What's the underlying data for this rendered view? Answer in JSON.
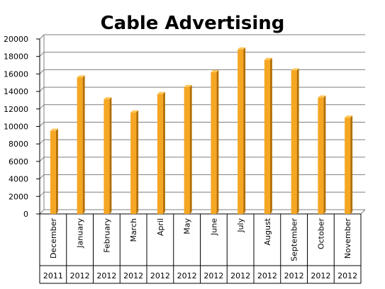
{
  "chart_data": {
    "type": "bar",
    "title": "Cable Advertising",
    "categories": [
      "December",
      "January",
      "February",
      "March",
      "April",
      "May",
      "June",
      "July",
      "August",
      "September",
      "October",
      "November"
    ],
    "years": [
      "2011",
      "2012",
      "2012",
      "2012",
      "2012",
      "2012",
      "2012",
      "2012",
      "2012",
      "2012",
      "2012",
      "2012"
    ],
    "values": [
      9500,
      15600,
      13100,
      11600,
      13700,
      14500,
      16200,
      18800,
      17600,
      16400,
      13300,
      11000
    ],
    "y_ticks": [
      "0",
      "2000",
      "4000",
      "6000",
      "8000",
      "10000",
      "12000",
      "14000",
      "16000",
      "18000",
      "20000"
    ],
    "ylim": [
      0,
      20000
    ],
    "xlabel": "",
    "ylabel": "",
    "grid": true,
    "legend": "none",
    "colors": {
      "bar": "#f5a623",
      "bar_side": "#b36f00",
      "bar_top": "#ffc65a",
      "grid": "#7f7f7f"
    }
  }
}
